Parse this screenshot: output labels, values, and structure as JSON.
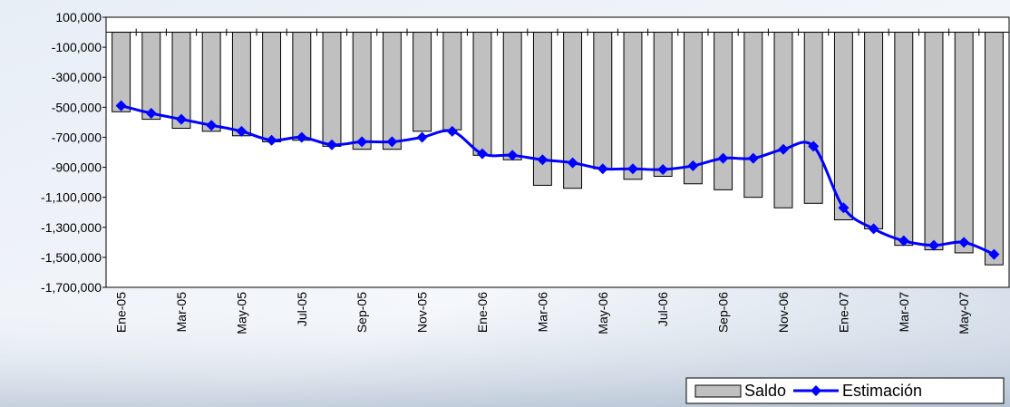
{
  "chart_data": {
    "type": "bar_line",
    "categories": [
      "Ene-05",
      null,
      "Mar-05",
      null,
      "May-05",
      null,
      "Jul-05",
      null,
      "Sep-05",
      null,
      "Nov-05",
      null,
      "Ene-06",
      null,
      "Mar-06",
      null,
      "May-06",
      null,
      "Jul-06",
      null,
      "Sep-06",
      null,
      "Nov-06",
      null,
      "Ene-07",
      null,
      "Mar-07",
      null,
      "May-07",
      null
    ],
    "series": [
      {
        "name": "Saldo",
        "type": "bar",
        "color": "#c0c0c0",
        "values": [
          -530000,
          -580000,
          -640000,
          -660000,
          -690000,
          -730000,
          -720000,
          -760000,
          -780000,
          -780000,
          -660000,
          -650000,
          -820000,
          -850000,
          -1020000,
          -1040000,
          -910000,
          -980000,
          -960000,
          -1010000,
          -1050000,
          -1100000,
          -1170000,
          -1140000,
          -1250000,
          -1310000,
          -1420000,
          -1450000,
          -1470000,
          -1550000
        ]
      },
      {
        "name": "Estimación",
        "type": "line",
        "color": "#0000ff",
        "values": [
          -490000,
          -540000,
          -580000,
          -620000,
          -660000,
          -720000,
          -700000,
          -750000,
          -730000,
          -730000,
          -700000,
          -660000,
          -810000,
          -820000,
          -850000,
          -870000,
          -910000,
          -910000,
          -915000,
          -890000,
          -840000,
          -840000,
          -780000,
          -760000,
          -1170000,
          -1310000,
          -1390000,
          -1420000,
          -1400000,
          -1480000
        ]
      }
    ],
    "ylim": [
      -1700000,
      100000
    ],
    "yticks": [
      {
        "value": -1700000,
        "label": "-1,700,000"
      },
      {
        "value": -1500000,
        "label": "-1,500,000"
      },
      {
        "value": -1300000,
        "label": "-1,300,000"
      },
      {
        "value": -1100000,
        "label": "-1,100,000"
      },
      {
        "value": -900000,
        "label": "-900,000"
      },
      {
        "value": -700000,
        "label": "-700,000"
      },
      {
        "value": -500000,
        "label": "-500,000"
      },
      {
        "value": -300000,
        "label": "-300,000"
      },
      {
        "value": -100000,
        "label": "-100,000"
      },
      {
        "value": 100000,
        "label": "100,000"
      }
    ],
    "legend": "bottom-right"
  }
}
